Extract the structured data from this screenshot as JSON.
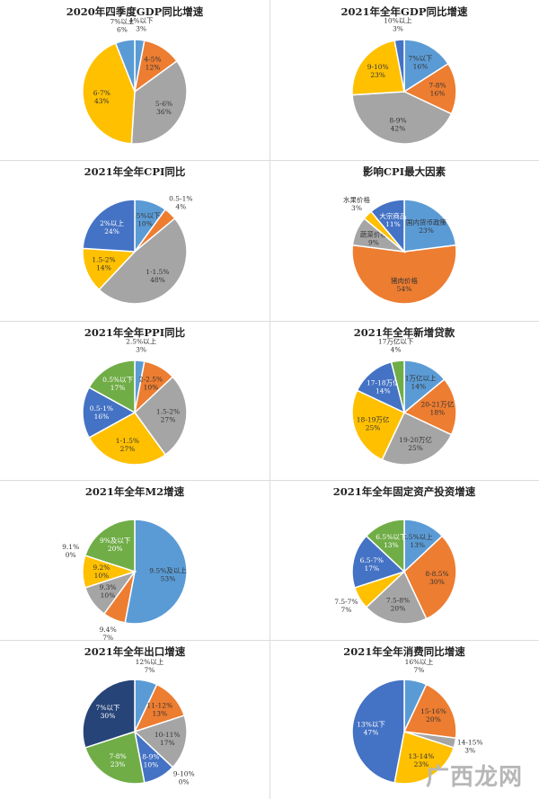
{
  "colors": {
    "blue": "#5b9bd5",
    "orange": "#ed7d31",
    "gray": "#a5a5a5",
    "yellow": "#ffc000",
    "darkblue": "#4472c4",
    "green": "#70ad47",
    "navy": "#264478"
  },
  "watermark": "广西龙网",
  "chart_data": [
    {
      "type": "pie",
      "title": "2020年四季度GDP同比增速",
      "slices": [
        {
          "label": "4%以下",
          "value": 3,
          "color": "blue"
        },
        {
          "label": "4-5%",
          "value": 12,
          "color": "orange"
        },
        {
          "label": "5-6%",
          "value": 36,
          "color": "gray"
        },
        {
          "label": "6-7%",
          "value": 43,
          "color": "yellow"
        },
        {
          "label": "7%以上",
          "value": 6,
          "color": "blue"
        }
      ]
    },
    {
      "type": "pie",
      "title": "2021年全年GDP同比增速",
      "slices": [
        {
          "label": "7%以下",
          "value": 16,
          "color": "blue"
        },
        {
          "label": "7-8%",
          "value": 16,
          "color": "orange"
        },
        {
          "label": "8-9%",
          "value": 42,
          "color": "gray"
        },
        {
          "label": "9-10%",
          "value": 23,
          "color": "yellow"
        },
        {
          "label": "10%以上",
          "value": 3,
          "color": "darkblue"
        }
      ]
    },
    {
      "type": "pie",
      "title": "2021年全年CPI同比",
      "slices": [
        {
          "label": "0.5%以下",
          "value": 10,
          "color": "blue"
        },
        {
          "label": "0.5-1%",
          "value": 4,
          "color": "orange"
        },
        {
          "label": "1-1.5%",
          "value": 48,
          "color": "gray"
        },
        {
          "label": "1.5-2%",
          "value": 14,
          "color": "yellow"
        },
        {
          "label": "2%以上",
          "value": 24,
          "color": "darkblue"
        }
      ]
    },
    {
      "type": "pie",
      "title": "影响CPI最大因素",
      "slices": [
        {
          "label": "国内货币政策",
          "value": 23,
          "color": "blue"
        },
        {
          "label": "猪肉价格",
          "value": 54,
          "color": "orange"
        },
        {
          "label": "蔬菜价格",
          "value": 9,
          "color": "gray"
        },
        {
          "label": "水果价格",
          "value": 3,
          "color": "yellow"
        },
        {
          "label": "大宗商品",
          "value": 11,
          "color": "darkblue"
        }
      ]
    },
    {
      "type": "pie",
      "title": "2021年全年PPI同比",
      "slices": [
        {
          "label": "2.5%以上",
          "value": 3,
          "color": "blue"
        },
        {
          "label": "2-2.5%",
          "value": 10,
          "color": "orange"
        },
        {
          "label": "1.5-2%",
          "value": 27,
          "color": "gray"
        },
        {
          "label": "1-1.5%",
          "value": 27,
          "color": "yellow"
        },
        {
          "label": "0.5-1%",
          "value": 16,
          "color": "darkblue"
        },
        {
          "label": "0.5%以下",
          "value": 17,
          "color": "green"
        }
      ]
    },
    {
      "type": "pie",
      "title": "2021年全年新增贷款",
      "slices": [
        {
          "label": "21万亿以上",
          "value": 14,
          "color": "blue"
        },
        {
          "label": "20-21万亿",
          "value": 18,
          "color": "orange"
        },
        {
          "label": "19-20万亿",
          "value": 25,
          "color": "gray"
        },
        {
          "label": "18-19万亿",
          "value": 25,
          "color": "yellow"
        },
        {
          "label": "17-18万亿",
          "value": 14,
          "color": "darkblue"
        },
        {
          "label": "17万亿以下",
          "value": 4,
          "color": "green"
        }
      ]
    },
    {
      "type": "pie",
      "title": "2021年全年M2增速",
      "slices": [
        {
          "label": "9.5%及以上",
          "value": 53,
          "color": "blue"
        },
        {
          "label": "9.4%",
          "value": 7,
          "color": "orange"
        },
        {
          "label": "9.3%",
          "value": 10,
          "color": "gray"
        },
        {
          "label": "9.2%",
          "value": 10,
          "color": "yellow"
        },
        {
          "label": "9.1%",
          "value": 0,
          "color": "darkblue"
        },
        {
          "label": "9%及以下",
          "value": 20,
          "color": "green"
        }
      ]
    },
    {
      "type": "pie",
      "title": "2021年全年固定资产投资增速",
      "slices": [
        {
          "label": "8.5%以上",
          "value": 13,
          "color": "blue"
        },
        {
          "label": "8-8.5%",
          "value": 30,
          "color": "orange"
        },
        {
          "label": "7.5-8%",
          "value": 20,
          "color": "gray"
        },
        {
          "label": "7.5-7%",
          "value": 7,
          "color": "yellow"
        },
        {
          "label": "6.5-7%",
          "value": 17,
          "color": "darkblue"
        },
        {
          "label": "6.5%以下",
          "value": 13,
          "color": "green"
        }
      ]
    },
    {
      "type": "pie",
      "title": "2021年全年出口增速",
      "slices": [
        {
          "label": "12%以上",
          "value": 7,
          "color": "blue"
        },
        {
          "label": "11-12%",
          "value": 13,
          "color": "orange"
        },
        {
          "label": "10-11%",
          "value": 17,
          "color": "gray"
        },
        {
          "label": "9-10%",
          "value": 0,
          "color": "yellow"
        },
        {
          "label": "8-9%",
          "value": 10,
          "color": "darkblue"
        },
        {
          "label": "7-8%",
          "value": 23,
          "color": "green"
        },
        {
          "label": "7%以下",
          "value": 30,
          "color": "navy"
        }
      ]
    },
    {
      "type": "pie",
      "title": "2021年全年消费同比增速",
      "slices": [
        {
          "label": "16%以上",
          "value": 7,
          "color": "blue"
        },
        {
          "label": "15-16%",
          "value": 20,
          "color": "orange"
        },
        {
          "label": "14-15%",
          "value": 3,
          "color": "gray"
        },
        {
          "label": "13-14%",
          "value": 23,
          "color": "yellow"
        },
        {
          "label": "13%以下",
          "value": 47,
          "color": "darkblue"
        }
      ]
    }
  ]
}
